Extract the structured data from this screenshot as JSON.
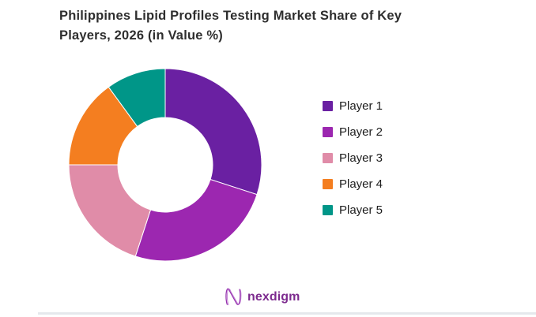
{
  "chart_data": {
    "type": "pie",
    "subtype": "donut",
    "title": "Philippines Lipid Profiles Testing Market Share of Key Players, 2026 (in Value %)",
    "categories": [
      "Player 1",
      "Player 2",
      "Player 3",
      "Player 4",
      "Player 5"
    ],
    "values": [
      30,
      25,
      20,
      15,
      10
    ],
    "unit": "percent_value_share",
    "colors": [
      "#6A20A2",
      "#9C27B0",
      "#E08CA8",
      "#F47E20",
      "#009688"
    ],
    "start_angle_deg": 0,
    "direction": "clockwise",
    "inner_radius_ratio": 0.49,
    "data_labels": false,
    "legend_position": "right"
  },
  "geometry": {
    "outer_radius": 122,
    "inner_radius": 60,
    "svg_size": 250
  },
  "title_text_color": "#2e2e2e",
  "footer": {
    "logo_text": "nexdigm",
    "logo_color": "#7D2B8F",
    "divider_color": "#e5e8ec"
  }
}
